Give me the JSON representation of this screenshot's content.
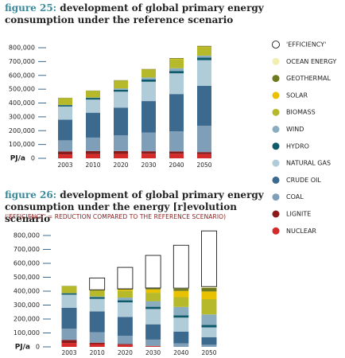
{
  "chart_data": [
    {
      "type": "stacked-bar",
      "figure": "figure 25:",
      "title": "development of global primary energy consumption under the reference scenario",
      "y_label": "PJ/a",
      "categories": [
        "2003",
        "2010",
        "2020",
        "2030",
        "2040",
        "2050"
      ],
      "ylim": [
        0,
        800000
      ],
      "yticks": [
        0,
        {
          "value": 100000,
          "label": "100,000"
        },
        {
          "value": 200000,
          "label": "200,000"
        },
        {
          "value": 300000,
          "label": "300,000"
        },
        {
          "value": 400000,
          "label": "400,000"
        },
        {
          "value": 500000,
          "label": "500,000"
        },
        {
          "value": 600000,
          "label": "600,000"
        },
        {
          "value": 700000,
          "label": "700,000"
        },
        {
          "value": 800000,
          "label": "800,000"
        }
      ],
      "series": [
        {
          "values": [
            28000,
            30000,
            32000,
            33000,
            33000,
            30000
          ]
        },
        {
          "values": [
            22000,
            22000,
            20000,
            18000,
            17000,
            15000
          ]
        },
        {
          "values": [
            80000,
            98000,
            115000,
            135000,
            145000,
            190000
          ]
        },
        {
          "values": [
            150000,
            180000,
            200000,
            228000,
            270000,
            290000
          ]
        },
        {
          "values": [
            95000,
            95000,
            115000,
            140000,
            150000,
            185000
          ]
        },
        {
          "values": [
            10000,
            12000,
            14000,
            16000,
            17000,
            18000
          ]
        },
        {
          "values": [
            1000,
            3000,
            10000,
            15000,
            20000,
            15000
          ]
        },
        {
          "values": [
            50000,
            48000,
            55000,
            55000,
            65000,
            60000
          ]
        },
        {
          "values": [
            0,
            0,
            1000,
            2000,
            3000,
            4000
          ]
        },
        {
          "values": [
            2000,
            2000,
            3000,
            4000,
            5000,
            6000
          ]
        },
        {
          "values": [
            0,
            0,
            0,
            0,
            0,
            0
          ]
        }
      ]
    },
    {
      "type": "stacked-bar",
      "figure": "figure 26:",
      "title": "development of global primary energy consumption under the energy [r]evolution scenario",
      "subtitle": "('EFFICIENCY' = REDUCTION COMPARED TO THE REFERENCE SCENARIO)",
      "y_label": "PJ/a",
      "categories": [
        "2003",
        "2010",
        "2020",
        "2030",
        "2040",
        "2050"
      ],
      "ylim": [
        0,
        800000
      ],
      "yticks": [
        0,
        {
          "value": 100000,
          "label": "100,000"
        },
        {
          "value": 200000,
          "label": "200,000"
        },
        {
          "value": 300000,
          "label": "300,000"
        },
        {
          "value": 400000,
          "label": "400,000"
        },
        {
          "value": 500000,
          "label": "500,000"
        },
        {
          "value": 600000,
          "label": "600,000"
        },
        {
          "value": 700000,
          "label": "700,000"
        },
        {
          "value": 800000,
          "label": "800,000"
        }
      ],
      "series": [
        {
          "values": [
            28000,
            20000,
            15000,
            5000,
            0,
            0
          ]
        },
        {
          "values": [
            22000,
            10000,
            5000,
            2000,
            0,
            0
          ]
        },
        {
          "values": [
            80000,
            75000,
            60000,
            45000,
            25000,
            15000
          ]
        },
        {
          "values": [
            150000,
            150000,
            135000,
            110000,
            85000,
            55000
          ]
        },
        {
          "values": [
            95000,
            90000,
            105000,
            110000,
            100000,
            70000
          ]
        },
        {
          "values": [
            10000,
            12000,
            14000,
            16000,
            17000,
            18000
          ]
        },
        {
          "values": [
            1000,
            5000,
            20000,
            40000,
            60000,
            75000
          ]
        },
        {
          "values": [
            50000,
            45000,
            50000,
            60000,
            70000,
            110000
          ]
        },
        {
          "values": [
            0,
            1000,
            8000,
            25000,
            45000,
            55000
          ]
        },
        {
          "values": [
            2000,
            2000,
            5000,
            8000,
            15000,
            25000
          ]
        },
        {
          "values": [
            0,
            0,
            0,
            2000,
            5000,
            10000
          ]
        },
        {
          "values": [
            0,
            85000,
            154000,
            234000,
            308000,
            400000
          ]
        }
      ]
    }
  ],
  "legend": {
    "position": "right",
    "items": [
      {
        "name": "NUCLEAR",
        "color": "#d42a2a"
      },
      {
        "name": "LIGNITE",
        "color": "#8b1a1a"
      },
      {
        "name": "COAL",
        "color": "#7f9fb8"
      },
      {
        "name": "CRUDE OIL",
        "color": "#3c6a8f"
      },
      {
        "name": "NATURAL GAS",
        "color": "#b0ccd8"
      },
      {
        "name": "HYDRO",
        "color": "#0e5a6a"
      },
      {
        "name": "WIND",
        "color": "#8aaec0"
      },
      {
        "name": "BIOMASS",
        "color": "#b5b92a"
      },
      {
        "name": "SOLAR",
        "color": "#e8c200"
      },
      {
        "name": "GEOTHERMAL",
        "color": "#6e7a1e"
      },
      {
        "name": "OCEAN ENERGY",
        "color": "#f2eeb0"
      },
      {
        "name": "'EFFICIENCY'",
        "color": "#ffffff"
      }
    ]
  }
}
